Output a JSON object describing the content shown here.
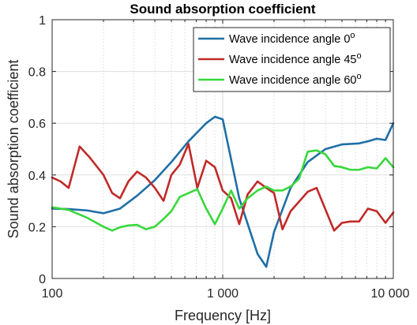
{
  "chart_data": {
    "type": "line",
    "title": "Sound absorption coefficient",
    "xlabel": "Frequency [Hz]",
    "ylabel": "Sound absorption coefficient",
    "x_scale": "log",
    "xlim": [
      100,
      10000
    ],
    "ylim": [
      0,
      1
    ],
    "x_ticks": [
      100,
      1000,
      10000
    ],
    "x_tick_labels": [
      "100",
      "1 000",
      "10 000"
    ],
    "y_ticks": [
      0,
      0.2,
      0.4,
      0.6,
      0.8,
      1
    ],
    "y_tick_labels": [
      "0",
      "0.2",
      "0.4",
      "0.6",
      "0.8",
      "1"
    ],
    "grid": true,
    "legend_position": "top-right",
    "series": [
      {
        "name": "Wave incidence angle 0",
        "name_superscript": "o",
        "color": "#1f6fa6",
        "x": [
          100,
          125,
          160,
          200,
          250,
          315,
          400,
          500,
          630,
          800,
          900,
          1000,
          1250,
          1600,
          1800,
          2000,
          2500,
          3150,
          4000,
          5000,
          6300,
          7100,
          8000,
          9000,
          10000
        ],
        "y": [
          0.27,
          0.268,
          0.263,
          0.252,
          0.27,
          0.32,
          0.38,
          0.45,
          0.53,
          0.6,
          0.625,
          0.615,
          0.31,
          0.095,
          0.045,
          0.18,
          0.35,
          0.45,
          0.5,
          0.518,
          0.522,
          0.53,
          0.54,
          0.535,
          0.6
        ]
      },
      {
        "name": "Wave incidence angle 45",
        "name_superscript": "o",
        "color": "#c02a28",
        "x": [
          100,
          112,
          125,
          145,
          165,
          200,
          225,
          250,
          280,
          315,
          355,
          400,
          450,
          500,
          560,
          630,
          710,
          800,
          900,
          1000,
          1120,
          1250,
          1400,
          1600,
          1800,
          2000,
          2240,
          2500,
          3150,
          3550,
          4500,
          5000,
          5600,
          6300,
          7100,
          8000,
          9000,
          10000
        ],
        "y": [
          0.39,
          0.375,
          0.35,
          0.51,
          0.47,
          0.4,
          0.33,
          0.31,
          0.375,
          0.413,
          0.39,
          0.35,
          0.3,
          0.4,
          0.44,
          0.52,
          0.35,
          0.455,
          0.43,
          0.34,
          0.31,
          0.21,
          0.325,
          0.375,
          0.35,
          0.33,
          0.19,
          0.26,
          0.335,
          0.35,
          0.185,
          0.215,
          0.22,
          0.22,
          0.27,
          0.26,
          0.215,
          0.255
        ]
      },
      {
        "name": "Wave incidence angle 60",
        "name_superscript": "o",
        "color": "#38d83c",
        "x": [
          100,
          125,
          160,
          200,
          225,
          250,
          280,
          315,
          355,
          400,
          450,
          500,
          560,
          630,
          710,
          800,
          900,
          1000,
          1120,
          1250,
          1400,
          1600,
          1800,
          2000,
          2240,
          2500,
          2800,
          3150,
          3550,
          4000,
          4500,
          5000,
          5600,
          6300,
          7100,
          8000,
          9000,
          10000
        ],
        "y": [
          0.275,
          0.265,
          0.235,
          0.2,
          0.185,
          0.198,
          0.205,
          0.207,
          0.19,
          0.2,
          0.23,
          0.26,
          0.315,
          0.33,
          0.345,
          0.27,
          0.21,
          0.27,
          0.34,
          0.27,
          0.31,
          0.34,
          0.355,
          0.34,
          0.34,
          0.355,
          0.385,
          0.49,
          0.495,
          0.48,
          0.435,
          0.43,
          0.42,
          0.42,
          0.43,
          0.425,
          0.465,
          0.43
        ]
      }
    ]
  }
}
